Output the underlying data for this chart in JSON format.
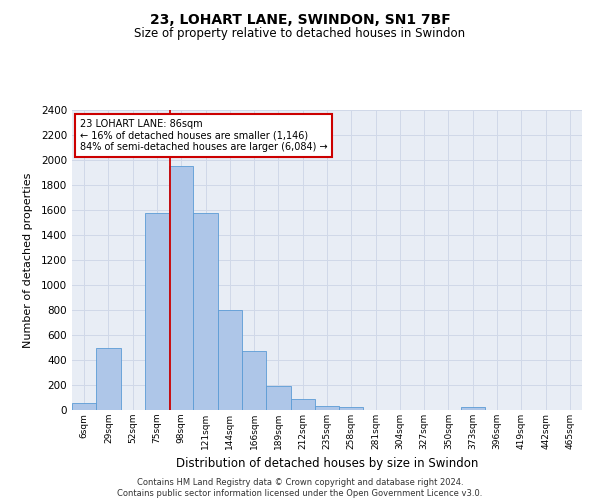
{
  "title_line1": "23, LOHART LANE, SWINDON, SN1 7BF",
  "title_line2": "Size of property relative to detached houses in Swindon",
  "xlabel": "Distribution of detached houses by size in Swindon",
  "ylabel": "Number of detached properties",
  "categories": [
    "6sqm",
    "29sqm",
    "52sqm",
    "75sqm",
    "98sqm",
    "121sqm",
    "144sqm",
    "166sqm",
    "189sqm",
    "212sqm",
    "235sqm",
    "258sqm",
    "281sqm",
    "304sqm",
    "327sqm",
    "350sqm",
    "373sqm",
    "396sqm",
    "419sqm",
    "442sqm",
    "465sqm"
  ],
  "values": [
    60,
    500,
    0,
    1580,
    1950,
    1580,
    800,
    475,
    195,
    90,
    35,
    28,
    0,
    0,
    0,
    0,
    22,
    0,
    0,
    0,
    0
  ],
  "bar_color": "#aec6e8",
  "bar_edge_color": "#5b9bd5",
  "annotation_text": "23 LOHART LANE: 86sqm\n← 16% of detached houses are smaller (1,146)\n84% of semi-detached houses are larger (6,084) →",
  "annotation_box_color": "#ffffff",
  "annotation_box_edge": "#cc0000",
  "vline_color": "#cc0000",
  "vline_x_index": 3.52,
  "ylim": [
    0,
    2400
  ],
  "yticks": [
    0,
    200,
    400,
    600,
    800,
    1000,
    1200,
    1400,
    1600,
    1800,
    2000,
    2200,
    2400
  ],
  "grid_color": "#d0d8e8",
  "background_color": "#e8edf5",
  "footer1": "Contains HM Land Registry data © Crown copyright and database right 2024.",
  "footer2": "Contains public sector information licensed under the Open Government Licence v3.0."
}
